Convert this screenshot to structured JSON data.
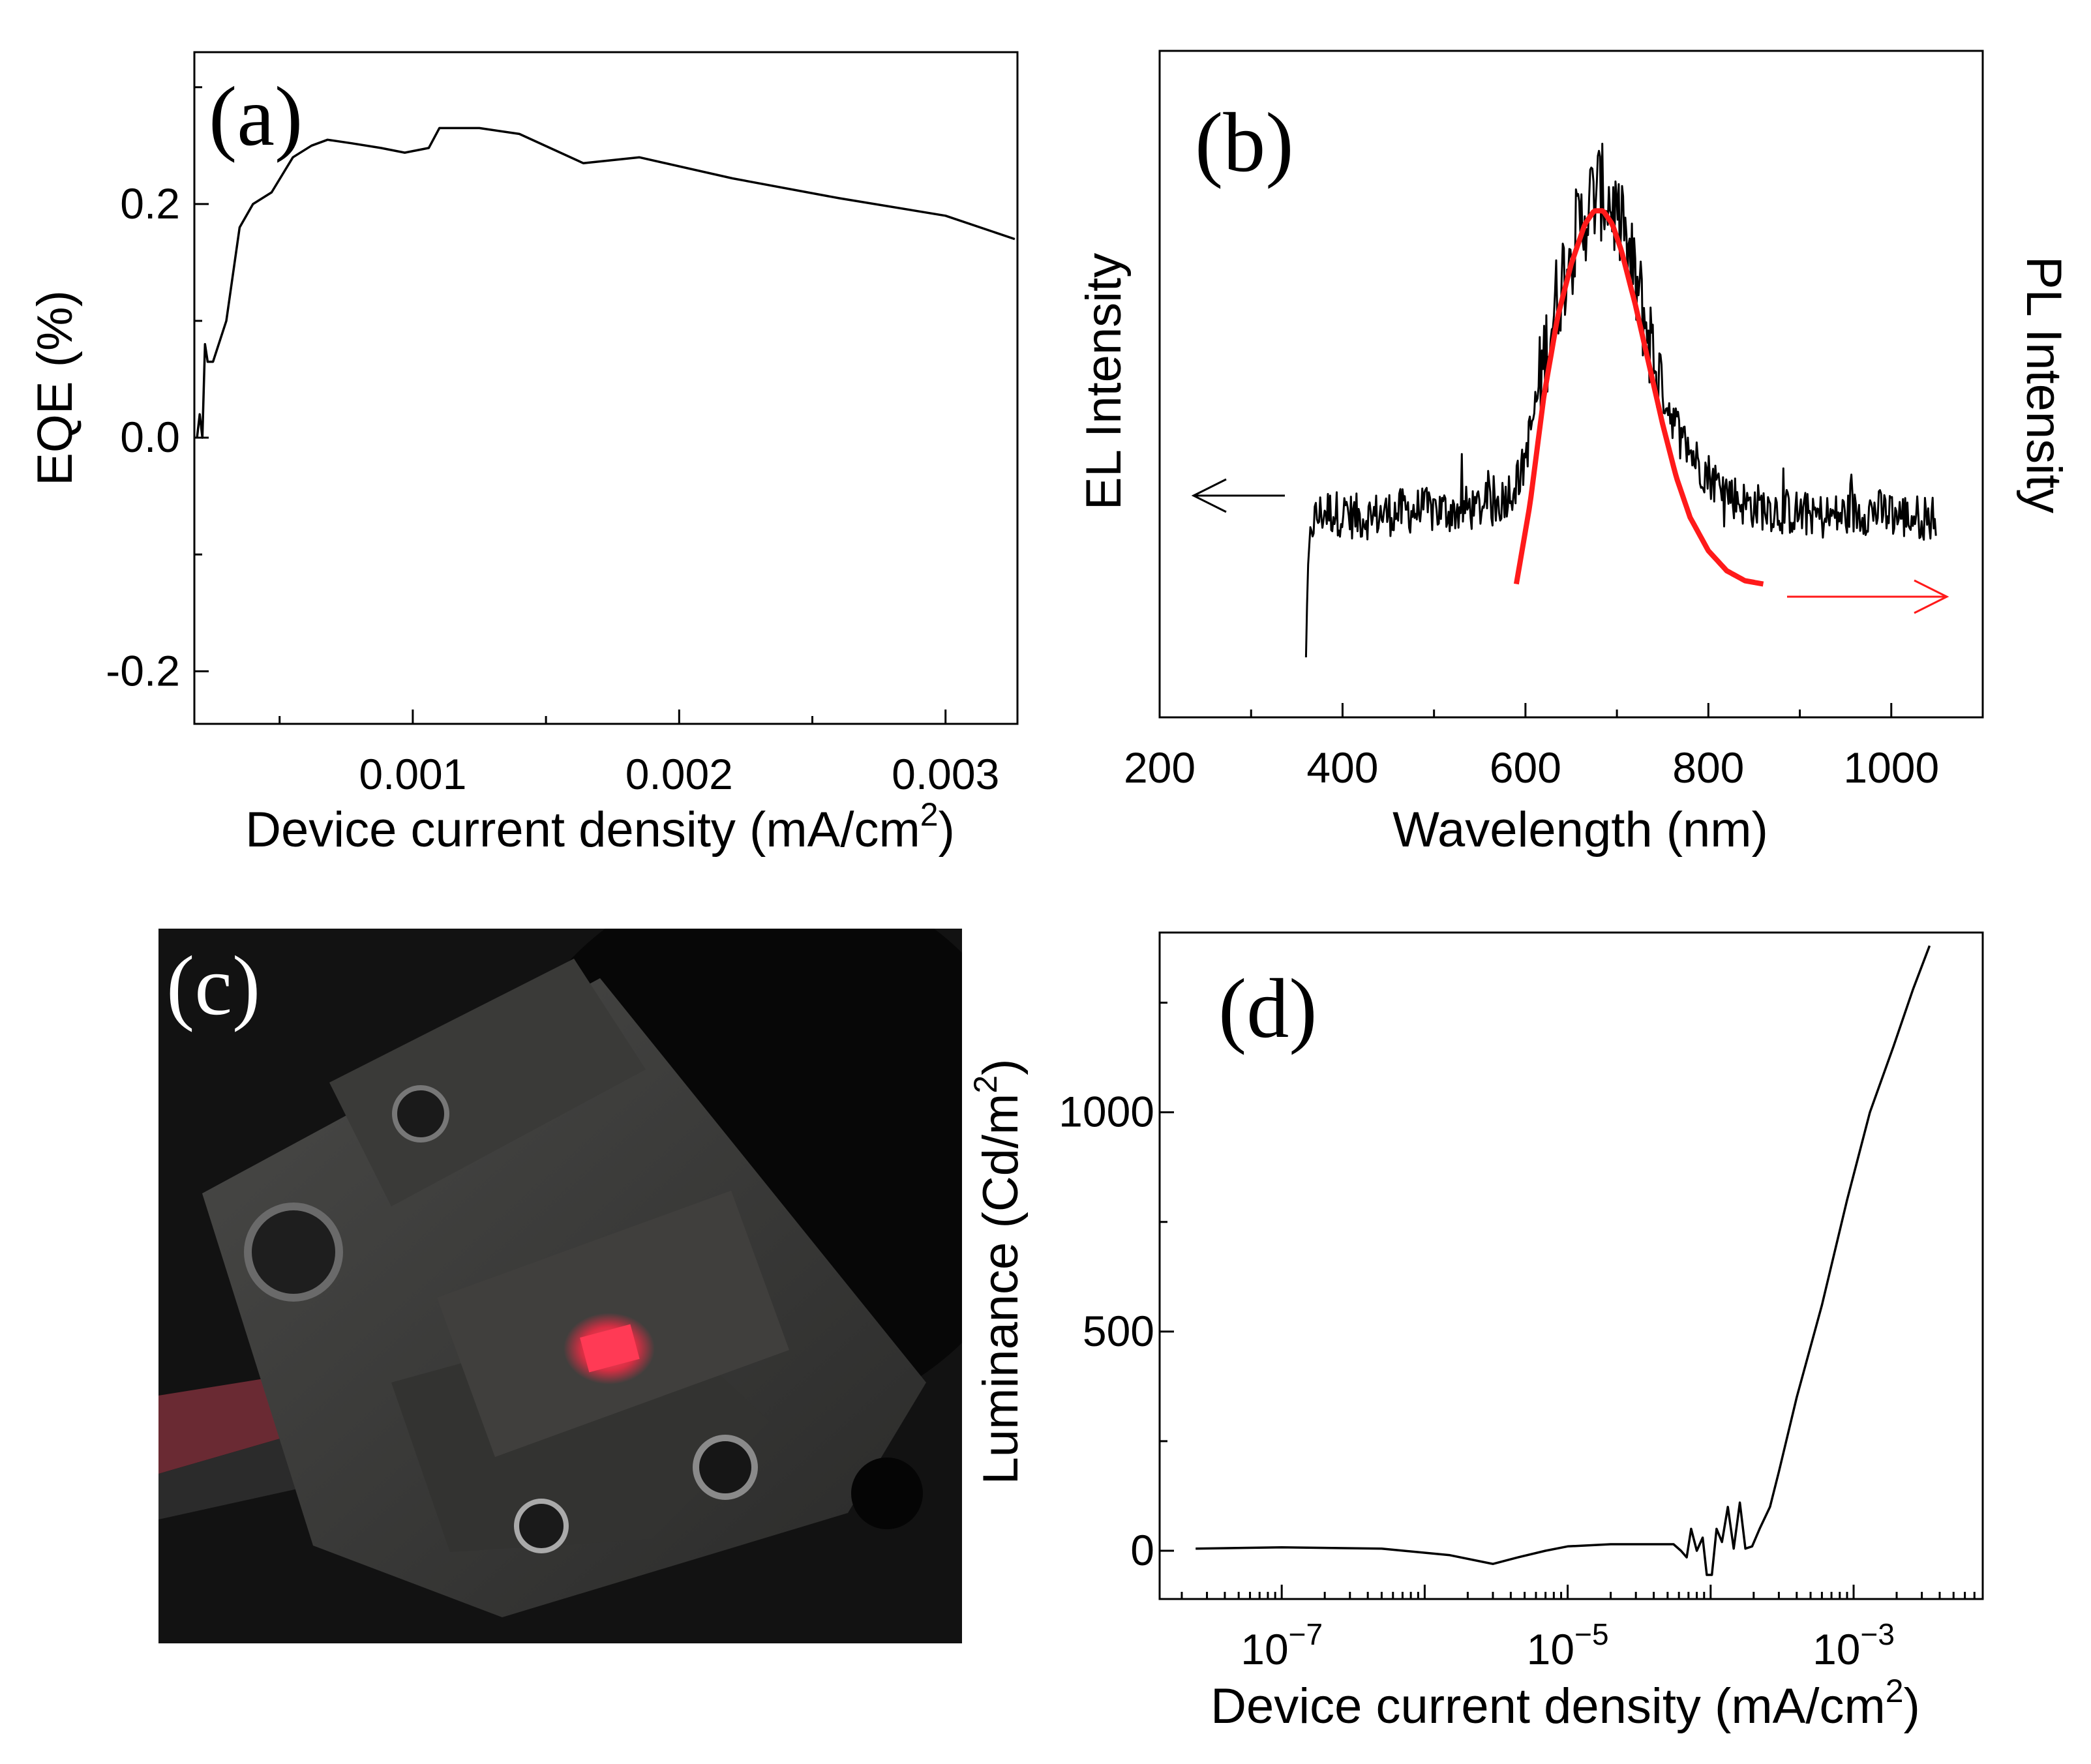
{
  "chart_data": [
    {
      "panel": "(a)",
      "type": "line",
      "xlabel": "Device current density (mA/cm",
      "xlabel_sup": "2",
      "xlabel_end": ")",
      "ylabel": "EQE (%)",
      "xlim": [
        0.00018,
        0.00327
      ],
      "ylim": [
        -0.245,
        0.33
      ],
      "xticks": [
        0.001,
        0.002,
        0.003
      ],
      "xtick_labels": [
        "0.001",
        "0.002",
        "0.003"
      ],
      "yticks": [
        -0.2,
        0.0,
        0.2
      ],
      "ytick_labels": [
        "-0.2",
        "0.0",
        "0.2"
      ],
      "x": [
        0.00019,
        0.0002,
        0.00021,
        0.00022,
        0.00023,
        0.00025,
        0.0003,
        0.00035,
        0.0004,
        0.00047,
        0.00055,
        0.00062,
        0.00068,
        0.00077,
        0.00088,
        0.00097,
        0.00106,
        0.0011,
        0.00118,
        0.00125,
        0.0014,
        0.00164,
        0.00185,
        0.0022,
        0.0026,
        0.003,
        0.00326
      ],
      "y": [
        0.0,
        0.02,
        0.0,
        0.08,
        0.065,
        0.065,
        0.1,
        0.18,
        0.2,
        0.21,
        0.24,
        0.25,
        0.255,
        0.252,
        0.248,
        0.244,
        0.248,
        0.265,
        0.265,
        0.265,
        0.26,
        0.235,
        0.24,
        0.222,
        0.205,
        0.19,
        0.17
      ]
    },
    {
      "panel": "(b)",
      "type": "line",
      "xlabel": "Wavelength (nm)",
      "ylabel": "EL Intensity",
      "ylabel_right": "PL Intensity",
      "xlim": [
        200,
        1100
      ],
      "xticks": [
        200,
        400,
        600,
        800,
        1000
      ],
      "xtick_labels": [
        "200",
        "400",
        "600",
        "800",
        "1000"
      ],
      "ylim": [
        0,
        1
      ],
      "series": [
        {
          "name": "",
          "role": "EL",
          "color": "#000000",
          "x": [
            360,
            362,
            365,
            380,
            420,
            470,
            520,
            570,
            595,
            610,
            625,
            640,
            655,
            670,
            680,
            690,
            700,
            715,
            730,
            750,
            770,
            790,
            810,
            840,
            880,
            930,
            980,
            1020,
            1050
          ],
          "y": [
            0.09,
            0.22,
            0.29,
            0.31,
            0.3,
            0.31,
            0.31,
            0.32,
            0.36,
            0.46,
            0.57,
            0.66,
            0.72,
            0.77,
            0.79,
            0.78,
            0.75,
            0.68,
            0.6,
            0.49,
            0.42,
            0.38,
            0.35,
            0.32,
            0.31,
            0.3,
            0.31,
            0.3,
            0.3
          ]
        },
        {
          "name": "",
          "role": "PL",
          "color": "#ff1a1a",
          "x": [
            590,
            605,
            620,
            635,
            650,
            665,
            675,
            685,
            695,
            705,
            720,
            735,
            750,
            765,
            780,
            800,
            820,
            840,
            860
          ],
          "y": [
            0.2,
            0.32,
            0.48,
            0.6,
            0.68,
            0.74,
            0.76,
            0.76,
            0.74,
            0.7,
            0.62,
            0.53,
            0.44,
            0.36,
            0.3,
            0.25,
            0.22,
            0.205,
            0.2
          ]
        }
      ],
      "arrows": [
        {
          "points_to": "left",
          "color": "#000000"
        },
        {
          "points_to": "right",
          "color": "#ff1a1a"
        }
      ]
    },
    {
      "panel": "(d)",
      "type": "line",
      "x_scale": "log",
      "xlabel": "Device current density (mA/cm",
      "xlabel_sup": "2",
      "xlabel_end": ")",
      "ylabel": "Luminance (Cd/m",
      "ylabel_sup": "2",
      "ylabel_end": ")",
      "xlim": [
        1.4e-08,
        0.008
      ],
      "ylim": [
        -110,
        1410
      ],
      "xticks": [
        1e-07,
        1e-05,
        0.001
      ],
      "xtick_labels": [
        "10",
        "10",
        "10"
      ],
      "xtick_exponents": [
        "−7",
        "−5",
        "−3"
      ],
      "yticks": [
        0,
        500,
        1000
      ],
      "ytick_labels": [
        "0",
        "500",
        "1000"
      ],
      "x": [
        2.5e-08,
        1e-07,
        5e-07,
        1.5e-06,
        3e-06,
        4.5e-06,
        7e-06,
        1e-05,
        2e-05,
        4e-05,
        5.5e-05,
        6.2e-05,
        6.8e-05,
        7.3e-05,
        8e-05,
        8.8e-05,
        9.4e-05,
        0.000102,
        0.00011,
        0.00012,
        0.000132,
        0.000145,
        0.00016,
        0.000175,
        0.000195,
        0.00022,
        0.00026,
        0.0003,
        0.0004,
        0.0006,
        0.0009,
        0.0013,
        0.0019,
        0.0026,
        0.0034
      ],
      "y": [
        5,
        8,
        5,
        -10,
        -30,
        -15,
        0,
        10,
        15,
        15,
        15,
        0,
        -15,
        50,
        0,
        30,
        -55,
        -55,
        50,
        20,
        100,
        5,
        110,
        5,
        10,
        50,
        100,
        180,
        350,
        560,
        800,
        1000,
        1150,
        1280,
        1380
      ]
    }
  ],
  "panel_labels": {
    "a": "(a)",
    "b": "(b)",
    "c": "(c)",
    "d": "(d)"
  }
}
